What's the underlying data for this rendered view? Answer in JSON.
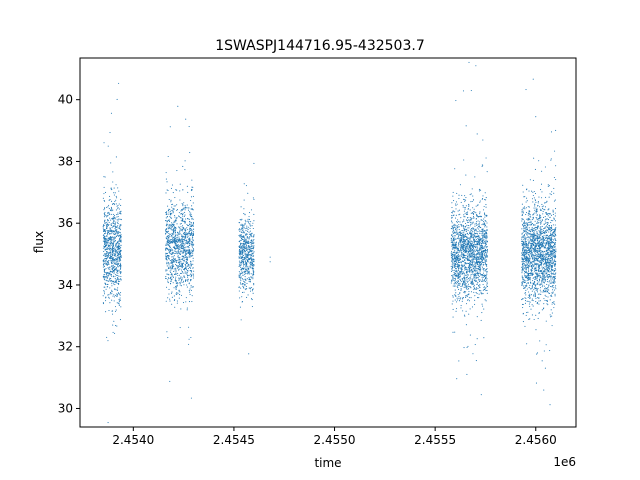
{
  "chart_data": {
    "type": "scatter",
    "title": "1SWASPJ144716.95-432503.7",
    "xlabel": "time",
    "ylabel": "flux",
    "x_offset_label": "1e6",
    "xlim": [
      2453735,
      2456200
    ],
    "ylim": [
      29.4,
      41.35
    ],
    "x_ticks": [
      2454000,
      2454500,
      2455000,
      2455500,
      2456000
    ],
    "x_tick_labels": [
      "2.4540",
      "2.4545",
      "2.4550",
      "2.4555",
      "2.4560"
    ],
    "y_ticks": [
      30,
      32,
      34,
      36,
      38,
      40
    ],
    "y_tick_labels": [
      "30",
      "32",
      "34",
      "36",
      "38",
      "40"
    ],
    "grid": false,
    "marker_color": "#1f77b4",
    "series": [
      {
        "segments": [
          {
            "x_start": 2453850,
            "x_end": 2453940,
            "center": 35.1,
            "spread": 0.8,
            "n": 900
          },
          {
            "x_start": 2454160,
            "x_end": 2454300,
            "center": 35.2,
            "spread": 0.75,
            "n": 1100
          },
          {
            "x_start": 2454525,
            "x_end": 2454600,
            "center": 35.0,
            "spread": 0.55,
            "n": 600
          },
          {
            "x_start": 2455580,
            "x_end": 2455760,
            "center": 35.0,
            "spread": 0.7,
            "n": 1800
          },
          {
            "x_start": 2455930,
            "x_end": 2456100,
            "center": 35.0,
            "spread": 0.75,
            "n": 1900
          }
        ],
        "isolated_points": [
          {
            "x": 2454680,
            "y": 34.9
          },
          {
            "x": 2454680,
            "y": 34.75
          }
        ]
      }
    ]
  }
}
